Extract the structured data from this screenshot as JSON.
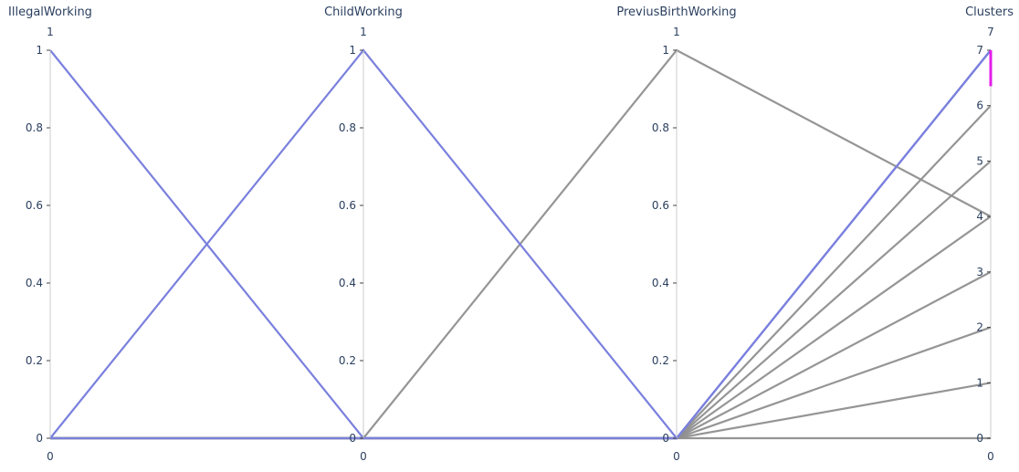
{
  "chart_data": {
    "type": "parallel_coordinates",
    "dimensions": [
      {
        "name": "IllegalWorking",
        "range": [
          0,
          1
        ],
        "ticks": [
          "0",
          "0.2",
          "0.4",
          "0.6",
          "0.8",
          "1"
        ],
        "range_min_label": "0",
        "range_max_label": "1"
      },
      {
        "name": "ChildWorking",
        "range": [
          0,
          1
        ],
        "ticks": [
          "0",
          "0.2",
          "0.4",
          "0.6",
          "0.8",
          "1"
        ],
        "range_min_label": "0",
        "range_max_label": "1"
      },
      {
        "name": "PreviusBirthWorking",
        "range": [
          0,
          1
        ],
        "ticks": [
          "0",
          "0.2",
          "0.4",
          "0.6",
          "0.8",
          "1"
        ],
        "range_min_label": "0",
        "range_max_label": "1"
      },
      {
        "name": "Clusters",
        "range": [
          0,
          7
        ],
        "ticks": [
          "0",
          "1",
          "2",
          "3",
          "4",
          "5",
          "6",
          "7"
        ],
        "range_min_label": "0",
        "range_max_label": "7",
        "constraint_range": [
          6.35,
          7
        ]
      }
    ],
    "lines": [
      {
        "values": [
          0,
          0,
          0,
          0
        ],
        "highlight": false
      },
      {
        "values": [
          0,
          0,
          0,
          1
        ],
        "highlight": false
      },
      {
        "values": [
          0,
          0,
          0,
          2
        ],
        "highlight": false
      },
      {
        "values": [
          0,
          0,
          0,
          3
        ],
        "highlight": false
      },
      {
        "values": [
          0,
          0,
          0,
          4
        ],
        "highlight": false
      },
      {
        "values": [
          0,
          0,
          0,
          5
        ],
        "highlight": false
      },
      {
        "values": [
          0,
          0,
          0,
          6
        ],
        "highlight": false
      },
      {
        "values": [
          0,
          0,
          1,
          4
        ],
        "highlight": false
      },
      {
        "values": [
          0,
          1,
          0,
          7
        ],
        "highlight": true
      },
      {
        "values": [
          1,
          0,
          0,
          7
        ],
        "highlight": true
      },
      {
        "values": [
          0,
          0,
          0,
          7
        ],
        "highlight": true
      }
    ],
    "colors": {
      "highlight": "#7a80dd",
      "dimmed": "#8f8f8f",
      "constraint": "#e41de9",
      "axis": "#cccccc"
    }
  }
}
